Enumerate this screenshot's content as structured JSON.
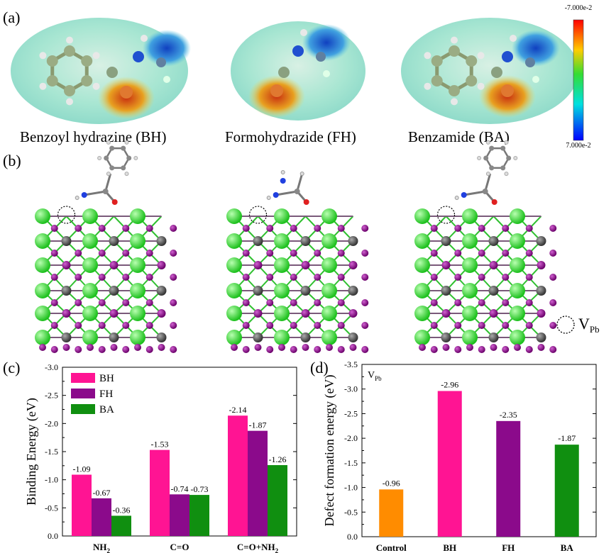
{
  "panels": {
    "a": "(a)",
    "b": "(b)",
    "c": "(c)",
    "d": "(d)"
  },
  "molecules": [
    {
      "name": "Benzoyl hydrazine (BH)"
    },
    {
      "name": "Formohydrazide (FH)"
    },
    {
      "name": "Benzamide (BA)"
    }
  ],
  "colorbar": {
    "max_label": "-7.000e-2",
    "min_label": "7.000e-2"
  },
  "vacancy_legend": {
    "label": "V",
    "subscript": "Pb"
  },
  "colors": {
    "BH": "#ff1493",
    "FH": "#8b0a8b",
    "BA": "#108f10",
    "Control": "#ff8c00",
    "Pb_green": "#33dd33",
    "I_purple": "#8a0a8a",
    "C_gray": "#555555"
  },
  "chart_data": [
    {
      "type": "bar",
      "panel": "c",
      "categories": [
        "NH2",
        "C=O",
        "C=O+NH2"
      ],
      "category_labels": [
        {
          "main": "NH",
          "sub": "2",
          "rest": ""
        },
        {
          "main": "C=O",
          "sub": "",
          "rest": ""
        },
        {
          "main": "C=O+NH",
          "sub": "2",
          "rest": ""
        }
      ],
      "series": [
        {
          "name": "BH",
          "values": [
            -1.09,
            -1.53,
            -2.14
          ],
          "labels": [
            "-1.09",
            "-1.53",
            "-2.14"
          ]
        },
        {
          "name": "FH",
          "values": [
            -0.67,
            -0.74,
            -1.87
          ],
          "labels": [
            "-0.67",
            "-0.74",
            "-1.87"
          ]
        },
        {
          "name": "BA",
          "values": [
            -0.36,
            -0.73,
            -1.26
          ],
          "labels": [
            "-0.36",
            "-0.73",
            "-1.26"
          ]
        }
      ],
      "ylabel": "Binding Energy (eV)",
      "ylim": [
        0,
        -3.0
      ],
      "yticks": [
        "0.0",
        "-0.5",
        "-1.0",
        "-1.5",
        "-2.0",
        "-2.5",
        "-3.0"
      ],
      "legend": "top-left"
    },
    {
      "type": "bar",
      "panel": "d",
      "categories": [
        "Control",
        "BH",
        "FH",
        "BA"
      ],
      "values": [
        -0.96,
        -2.96,
        -2.35,
        -1.87
      ],
      "labels": [
        "-0.96",
        "-2.96",
        "-2.35",
        "-1.87"
      ],
      "annotation": {
        "main": "V",
        "sub": "Pb"
      },
      "ylabel": "Defect formation energy (eV)",
      "ylim": [
        0,
        -3.5
      ],
      "yticks": [
        "0.0",
        "-0.5",
        "-1.0",
        "-1.5",
        "-2.0",
        "-2.5",
        "-3.0",
        "-3.5"
      ]
    }
  ]
}
